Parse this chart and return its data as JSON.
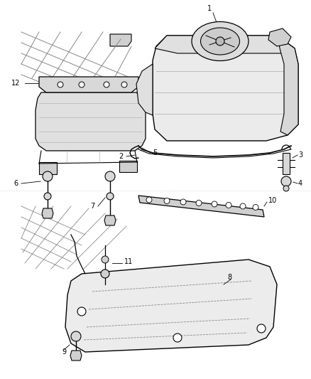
{
  "background_color": "#ffffff",
  "line_color": "#000000",
  "gray_light": "#cccccc",
  "gray_mid": "#999999",
  "gray_part": "#e8e8e8",
  "figsize": [
    4.38,
    5.33
  ],
  "dpi": 100
}
